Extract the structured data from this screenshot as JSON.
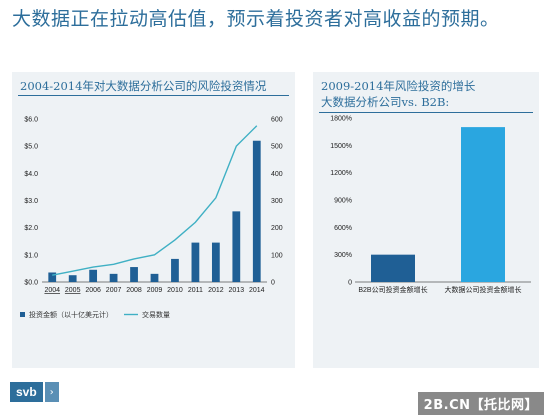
{
  "headline": "大数据正在拉动高估值，预示着投资者对高收益的预期。",
  "left_panel": {
    "title": "2004-2014年对大数据分析公司的风险投资情况"
  },
  "right_panel": {
    "title_line1": "2009-2014年风险投资的增长",
    "title_line2": "大数据分析公司vs. B2B:"
  },
  "footer": {
    "logo": "svb",
    "logo_arrow": "›",
    "watermark": "2B.CN【托比网】"
  },
  "colors": {
    "accent": "#2d6e9b",
    "bar_dark": "#1f5f95",
    "bar_light": "#2aa6e0",
    "line": "#3fb0c4"
  },
  "chart_data": [
    {
      "type": "bar",
      "categories": [
        "2004",
        "2005",
        "2006",
        "2007",
        "2008",
        "2009",
        "2010",
        "2011",
        "2012",
        "2013",
        "2014"
      ],
      "series": [
        {
          "name": "投资金额（以十亿美元计）",
          "type": "bar",
          "axis": "left",
          "values": [
            0.35,
            0.25,
            0.45,
            0.3,
            0.55,
            0.3,
            0.85,
            1.45,
            1.45,
            2.6,
            5.2
          ]
        },
        {
          "name": "交易数量",
          "type": "line",
          "axis": "right",
          "values": [
            25,
            40,
            55,
            65,
            85,
            100,
            155,
            220,
            310,
            500,
            575
          ]
        }
      ],
      "y_ticks_left": [
        "$0.0",
        "$1.0",
        "$2.0",
        "$3.0",
        "$4.0",
        "$5.0",
        "$6.0"
      ],
      "y_ticks_right": [
        "0",
        "100",
        "200",
        "300",
        "400",
        "500",
        "600"
      ],
      "ylim_left": [
        0,
        6
      ],
      "ylim_right": [
        0,
        600
      ],
      "xlabel": "",
      "ylabel": "",
      "legend": "bottom-left"
    },
    {
      "type": "bar",
      "categories": [
        "B2B公司投资金额增长",
        "大数据公司投资金额增长"
      ],
      "values": [
        300,
        1700
      ],
      "y_ticks": [
        "0",
        "300%",
        "600%",
        "900%",
        "1200%",
        "1500%",
        "1800%"
      ],
      "ylim": [
        0,
        1800
      ],
      "xlabel": "",
      "ylabel": ""
    }
  ]
}
